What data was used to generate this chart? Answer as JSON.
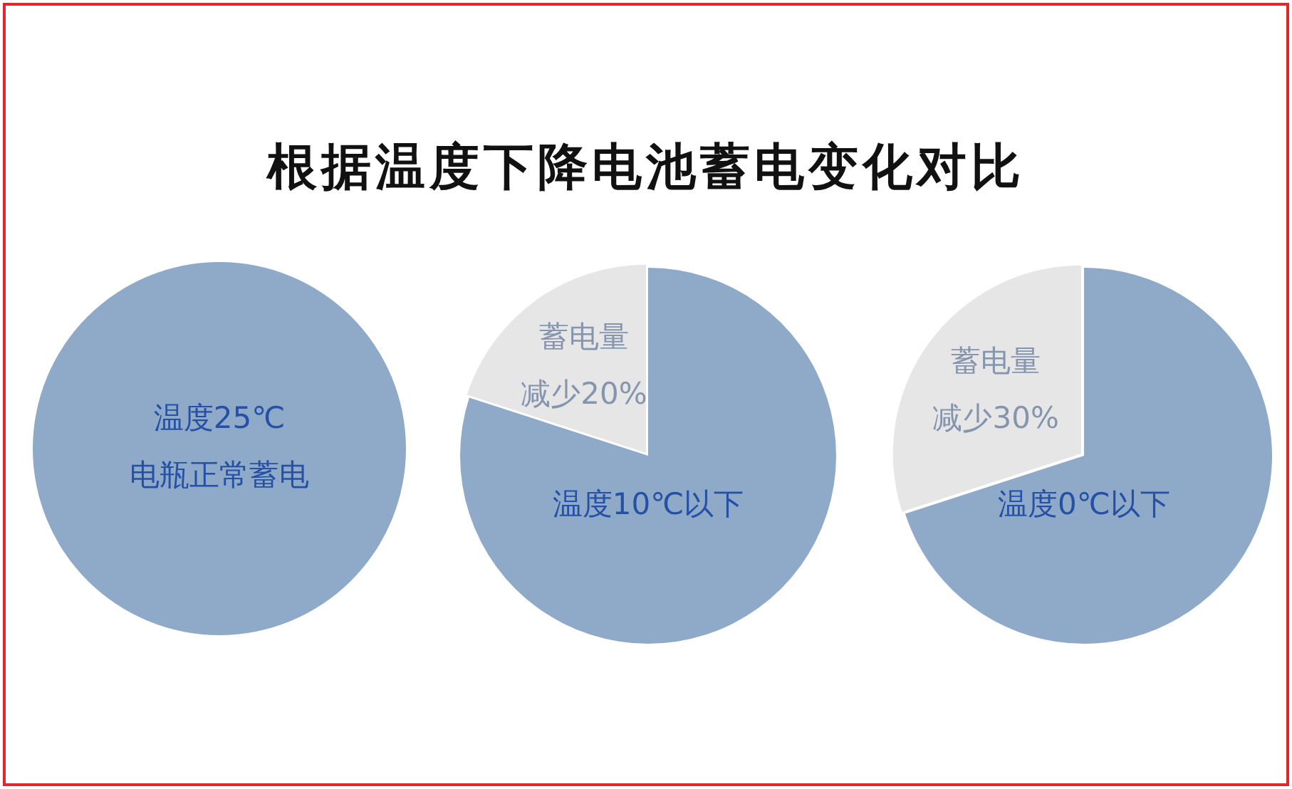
{
  "chart_data": [
    {
      "type": "pie",
      "title": "根据温度下降电池蓄电变化对比",
      "categories": [
        "温度25℃"
      ],
      "values": [
        100
      ],
      "colors": [
        "#8fa9c8"
      ],
      "annotations": [
        "电瓶正常蓄电"
      ]
    },
    {
      "type": "pie",
      "categories": [
        "温度10℃以下",
        "蓄电量"
      ],
      "values": [
        80,
        20
      ],
      "value_labels": [
        null,
        "减少20%"
      ],
      "colors": [
        "#8fa9c8",
        "#e6e6e6"
      ]
    },
    {
      "type": "pie",
      "categories": [
        "温度0℃以下",
        "蓄电量"
      ],
      "values": [
        70,
        30
      ],
      "value_labels": [
        null,
        "减少30%"
      ],
      "colors": [
        "#8fa9c8",
        "#e6e6e6"
      ]
    }
  ]
}
